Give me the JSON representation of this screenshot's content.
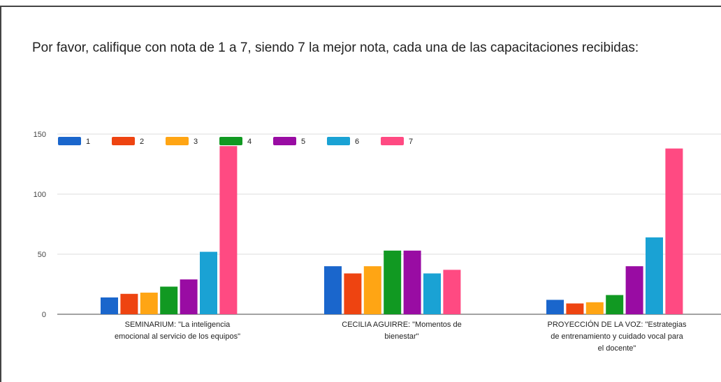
{
  "question": "Por favor, califique con nota de 1 a 7, siendo 7 la mejor nota, cada una de las capacitaciones recibidas:",
  "chart_data": {
    "type": "bar",
    "categories": [
      [
        "SEMINARIUM: \"La inteligencia",
        "emocional al servicio de los equipos\""
      ],
      [
        "CECILIA AGUIRRE: \"Momentos de",
        "bienestar\""
      ],
      [
        "PROYECCIÓN DE LA VOZ: \"Estrategias",
        "de entrenamiento y cuidado vocal para",
        "el docente\""
      ]
    ],
    "series": [
      {
        "name": "1",
        "color": "#1a66cc",
        "values": [
          14,
          40,
          12
        ]
      },
      {
        "name": "2",
        "color": "#ee4411",
        "values": [
          17,
          34,
          9
        ]
      },
      {
        "name": "3",
        "color": "#ffa514",
        "values": [
          18,
          40,
          10
        ]
      },
      {
        "name": "4",
        "color": "#119922",
        "values": [
          23,
          53,
          16
        ]
      },
      {
        "name": "5",
        "color": "#990ca3",
        "values": [
          29,
          53,
          40
        ]
      },
      {
        "name": "6",
        "color": "#1aa2d4",
        "values": [
          52,
          34,
          64
        ]
      },
      {
        "name": "7",
        "color": "#ff4a82",
        "values": [
          140,
          37,
          138
        ]
      }
    ],
    "yticks": [
      0,
      50,
      100,
      150
    ],
    "ylim": [
      0,
      150
    ],
    "legend_position": "top-left",
    "grid": true
  }
}
